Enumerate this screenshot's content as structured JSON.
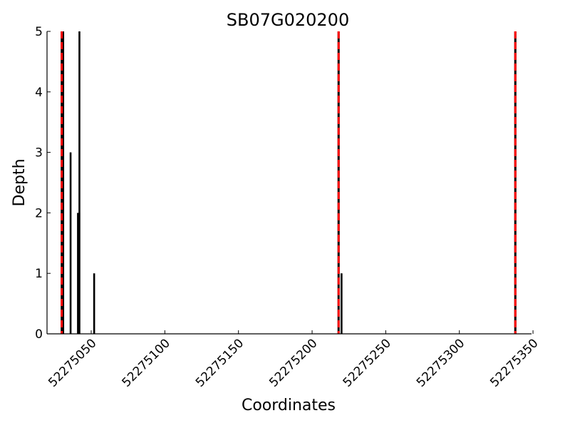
{
  "chart_data": {
    "type": "bar",
    "title": "SB07G020200",
    "xlabel": "Coordinates",
    "ylabel": "Depth",
    "xlim": [
      52275020,
      52275349
    ],
    "ylim": [
      0,
      5
    ],
    "xticks": [
      52275050,
      52275100,
      52275150,
      52275200,
      52275250,
      52275300,
      52275350
    ],
    "yticks": [
      0,
      1,
      2,
      3,
      4,
      5
    ],
    "grid": false,
    "bar_color": "#000000",
    "marker_line_color": "#ff0000",
    "bars": [
      {
        "x": 52275031,
        "y": 5
      },
      {
        "x": 52275036,
        "y": 3
      },
      {
        "x": 52275041,
        "y": 2
      },
      {
        "x": 52275042,
        "y": 5
      },
      {
        "x": 52275052,
        "y": 1
      },
      {
        "x": 52275218,
        "y": 4
      },
      {
        "x": 52275220,
        "y": 1
      },
      {
        "x": 52275338,
        "y": 5
      }
    ],
    "vlines": [
      52275030,
      52275218,
      52275338
    ]
  }
}
